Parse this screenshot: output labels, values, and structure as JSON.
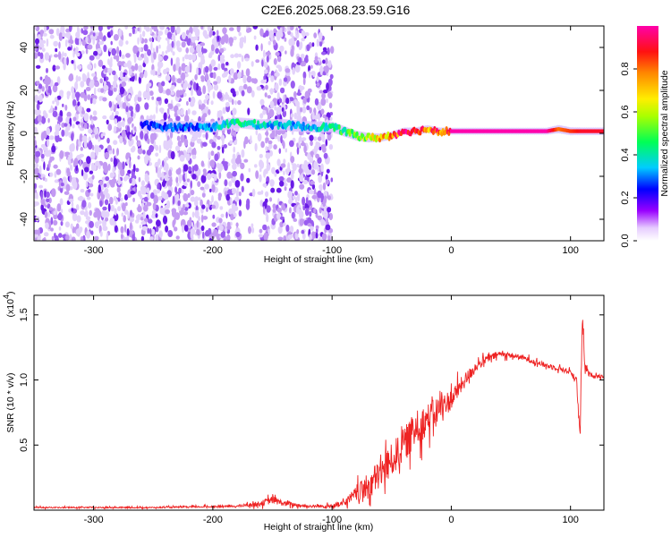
{
  "title": "C2E6.2025.068.23.59.G16",
  "chart_data": [
    {
      "type": "heatmap",
      "xlabel": "Height of straight line (km)",
      "ylabel": "Frequency (Hz)",
      "xlim": [
        -350,
        128
      ],
      "ylim": [
        -50,
        50
      ],
      "xticks": [
        -300,
        -200,
        -100,
        0,
        100
      ],
      "yticks": [
        -40,
        -20,
        0,
        20,
        40
      ],
      "noise_region_x": [
        -350,
        -100
      ],
      "ridge": {
        "x": [
          -260,
          -240,
          -220,
          -200,
          -180,
          -160,
          -140,
          -120,
          -100,
          -90,
          -80,
          -70,
          -60,
          -50,
          -40,
          -30,
          -20,
          -10,
          0,
          20,
          40,
          60,
          80,
          90,
          100,
          110,
          120,
          128
        ],
        "freq": [
          4,
          3,
          3,
          3,
          5,
          4,
          4,
          3,
          3,
          1,
          -1,
          -2,
          -2,
          -1,
          1,
          1,
          2,
          1,
          1,
          1,
          1,
          1,
          1,
          2,
          1,
          1,
          1,
          1
        ],
        "amplitude": [
          0.25,
          0.3,
          0.3,
          0.35,
          0.45,
          0.4,
          0.35,
          0.35,
          0.45,
          0.5,
          0.55,
          0.6,
          0.75,
          0.85,
          0.95,
          0.9,
          0.85,
          0.9,
          1.0,
          1.0,
          1.0,
          1.0,
          1.0,
          0.8,
          0.85,
          0.9,
          0.9,
          0.9
        ]
      },
      "colorbar": {
        "label": "Normalized spectral amplitude",
        "ticks": [
          0.0,
          0.2,
          0.4,
          0.6,
          0.8
        ],
        "range": [
          0,
          1
        ],
        "colors": [
          "#ffffff",
          "#cc99ff",
          "#6600ff",
          "#0000ff",
          "#00ccff",
          "#00ff33",
          "#ffff00",
          "#ff8800",
          "#ff0000",
          "#ff00aa"
        ]
      }
    },
    {
      "type": "line",
      "xlabel": "Height of straight line (km)",
      "ylabel": "SNR (10 * v/v)",
      "multiplier": "(x10",
      "multiplier_exp": "4",
      "multiplier_close": ")",
      "xlim": [
        -350,
        128
      ],
      "ylim": [
        0,
        1.65
      ],
      "xticks": [
        -300,
        -200,
        -100,
        0,
        100
      ],
      "yticks": [
        0.5,
        1.0,
        1.5
      ],
      "ytick_labels": [
        "0.5",
        "1.0",
        "1.5"
      ],
      "series": [
        {
          "color": "#ee2222",
          "x": [
            -350,
            -250,
            -180,
            -160,
            -150,
            -140,
            -120,
            -100,
            -90,
            -80,
            -70,
            -60,
            -50,
            -40,
            -30,
            -20,
            -10,
            0,
            10,
            20,
            30,
            40,
            50,
            60,
            70,
            80,
            90,
            100,
            105,
            108,
            110,
            112,
            115,
            120,
            128
          ],
          "values": [
            0.02,
            0.02,
            0.03,
            0.05,
            0.08,
            0.05,
            0.03,
            0.03,
            0.05,
            0.12,
            0.18,
            0.28,
            0.38,
            0.5,
            0.62,
            0.7,
            0.78,
            0.85,
            0.98,
            1.1,
            1.16,
            1.2,
            1.19,
            1.17,
            1.14,
            1.11,
            1.09,
            1.06,
            1.0,
            0.55,
            1.5,
            1.1,
            1.05,
            1.03,
            1.03
          ],
          "noise": [
            0.005,
            0.005,
            0.008,
            0.02,
            0.03,
            0.02,
            0.01,
            0.015,
            0.03,
            0.06,
            0.1,
            0.12,
            0.13,
            0.13,
            0.14,
            0.12,
            0.1,
            0.08,
            0.06,
            0.04,
            0.03,
            0.025,
            0.02,
            0.02,
            0.02,
            0.02,
            0.02,
            0.02,
            0.03,
            0.05,
            0.05,
            0.03,
            0.02,
            0.015,
            0.015
          ]
        }
      ]
    }
  ]
}
